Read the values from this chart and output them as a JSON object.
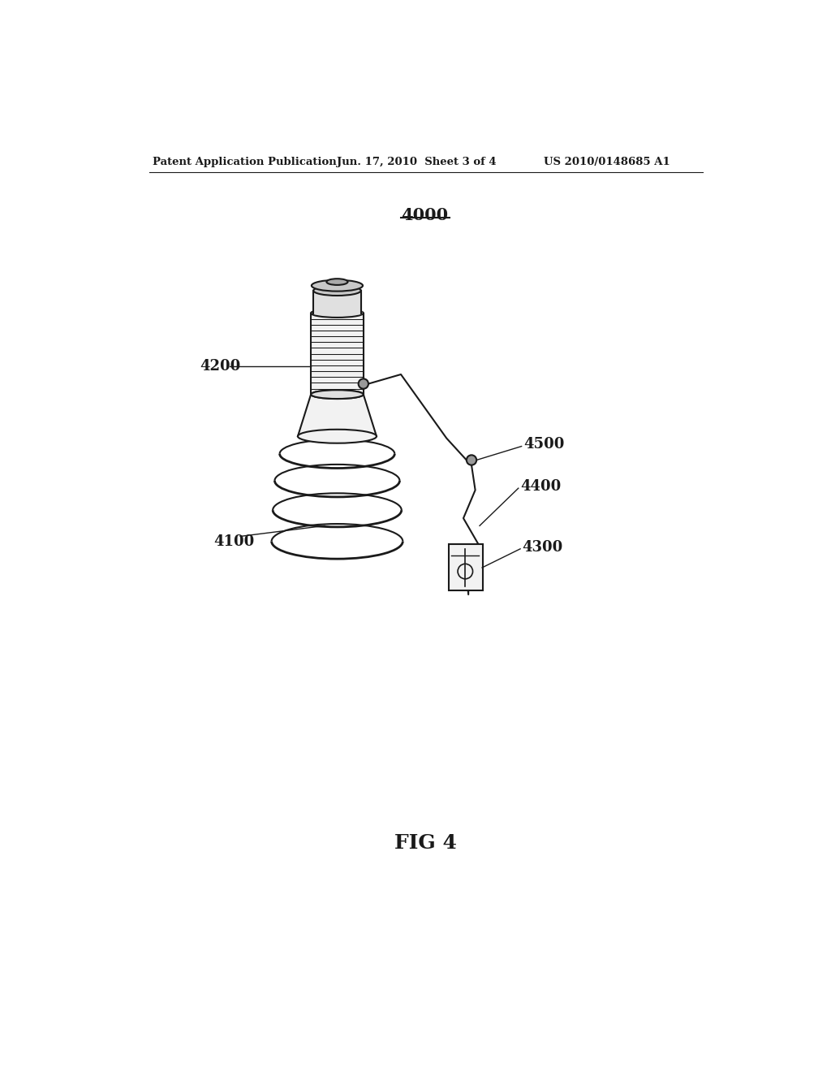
{
  "background_color": "#ffffff",
  "header_left": "Patent Application Publication",
  "header_mid": "Jun. 17, 2010  Sheet 3 of 4",
  "header_right": "US 2010/0148685 A1",
  "fig_label": "FIG 4",
  "ref_4000": "4000",
  "ref_4100": "4100",
  "ref_4200": "4200",
  "ref_4300": "4300",
  "ref_4400": "4400",
  "ref_4500": "4500",
  "line_color": "#1a1a1a",
  "line_width": 1.5,
  "label_fontsize": 13,
  "header_fontsize": 9.5,
  "title_fontsize": 15,
  "fig_label_fontsize": 18,
  "fill_light": "#f2f2f2",
  "fill_mid": "#e0e0e0",
  "fill_dark": "#c8c8c8"
}
